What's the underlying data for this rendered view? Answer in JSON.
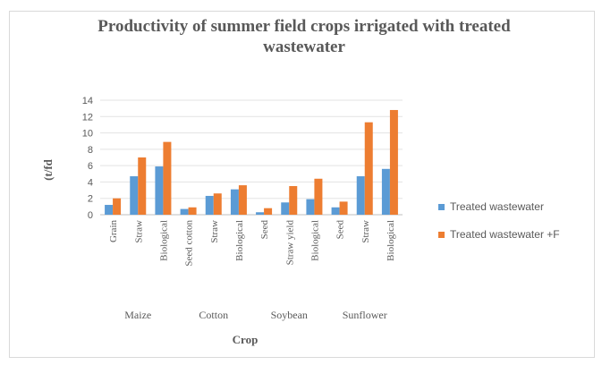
{
  "chart_data": {
    "type": "bar",
    "title": "Productivity of summer field crops irrigated with treated wastewater",
    "xlabel": "Crop",
    "ylabel": "(t/fd",
    "ylim": [
      0,
      14
    ],
    "yticks": [
      0,
      2,
      4,
      6,
      8,
      10,
      12,
      14
    ],
    "grid": true,
    "legend_position": "right",
    "categories": [
      "Grain",
      "Straw",
      "Biological",
      "Seed cotton",
      "Straw",
      "Biological",
      "Seed",
      "Straw yield",
      "Biological",
      "Seed",
      "Straw",
      "Biological"
    ],
    "groups": [
      {
        "name": "Maize",
        "count": 3
      },
      {
        "name": "Cotton",
        "count": 3
      },
      {
        "name": "Soybean",
        "count": 3
      },
      {
        "name": "Sunflower",
        "count": 3
      }
    ],
    "series": [
      {
        "name": "Treated wastewater",
        "color": "#5b9bd5",
        "values": [
          1.2,
          4.7,
          5.9,
          0.7,
          2.3,
          3.1,
          0.3,
          1.5,
          1.9,
          0.9,
          4.7,
          5.6
        ]
      },
      {
        "name": "Treated wastewater +F",
        "color": "#ed7d31",
        "values": [
          2.0,
          7.0,
          8.9,
          0.9,
          2.6,
          3.6,
          0.8,
          3.5,
          4.4,
          1.6,
          11.3,
          12.8
        ]
      }
    ]
  }
}
